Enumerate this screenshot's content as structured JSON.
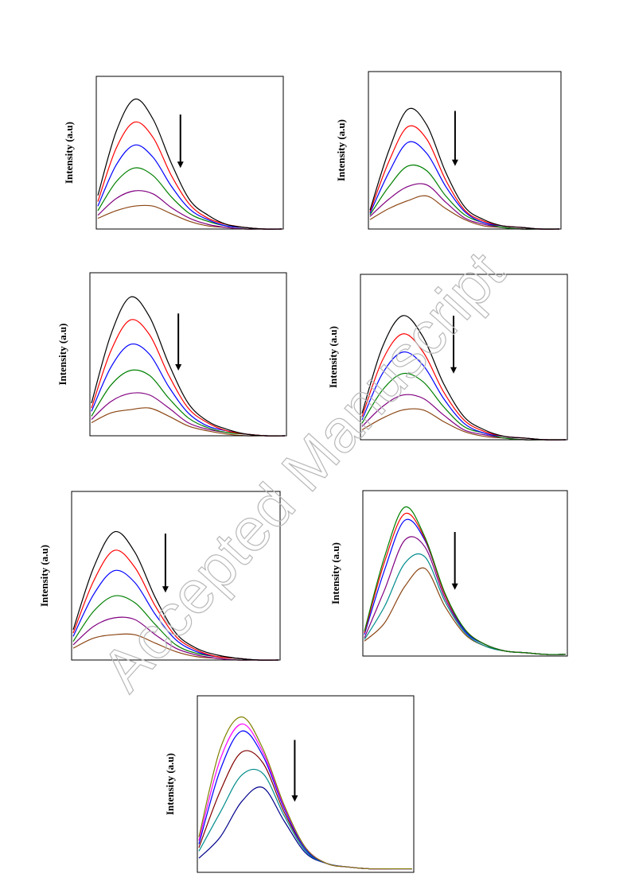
{
  "watermark": "Accepted Manuscript",
  "chart_data": [
    {
      "type": "line",
      "y_label": "Intensity (a.u)",
      "categories": [
        null,
        null,
        null,
        null,
        null,
        null,
        null,
        null,
        null,
        null,
        null
      ],
      "ylim": [
        0,
        100
      ],
      "series": [
        {
          "color": "#000000",
          "values": [
            22,
            64,
            85,
            72,
            43,
            19,
            9,
            3,
            1,
            0,
            0
          ]
        },
        {
          "color": "#ff0000",
          "values": [
            18,
            53,
            70,
            60,
            35,
            16,
            7,
            3,
            1,
            0,
            0
          ]
        },
        {
          "color": "#0000ff",
          "values": [
            15,
            42,
            55,
            47,
            28,
            13,
            6,
            2,
            1,
            0,
            0
          ]
        },
        {
          "color": "#008000",
          "values": [
            12,
            31,
            40,
            35,
            21,
            10,
            5,
            2,
            1,
            0,
            0
          ]
        },
        {
          "color": "#800080",
          "values": [
            9,
            20,
            25,
            23,
            14,
            7,
            3,
            1,
            0,
            0,
            0
          ]
        },
        {
          "color": "#8b4513",
          "values": [
            7,
            12,
            15,
            15,
            10,
            5,
            2,
            1,
            0,
            0,
            0
          ]
        }
      ]
    },
    {
      "type": "line",
      "y_label": "Intensity (a.u)",
      "categories": [
        null,
        null,
        null,
        null,
        null,
        null,
        null,
        null,
        null,
        null,
        null
      ],
      "ylim": [
        0,
        100
      ],
      "series": [
        {
          "color": "#000000",
          "values": [
            12,
            50,
            76,
            66,
            36,
            14,
            6,
            2,
            1,
            0,
            0
          ]
        },
        {
          "color": "#ff0000",
          "values": [
            11,
            43,
            65,
            57,
            31,
            12,
            5,
            2,
            1,
            0,
            0
          ]
        },
        {
          "color": "#0000ff",
          "values": [
            10,
            36,
            55,
            48,
            27,
            11,
            4,
            2,
            1,
            0,
            0
          ]
        },
        {
          "color": "#008000",
          "values": [
            9,
            27,
            40,
            37,
            21,
            9,
            4,
            1,
            0,
            0,
            0
          ]
        },
        {
          "color": "#800080",
          "values": [
            8,
            19,
            27,
            28,
            17,
            7,
            3,
            1,
            0,
            0,
            0
          ]
        },
        {
          "color": "#8b4513",
          "values": [
            6,
            13,
            18,
            21,
            13,
            6,
            2,
            1,
            0,
            0,
            0
          ]
        }
      ]
    },
    {
      "type": "line",
      "y_label": "Intensity (a.u)",
      "categories": [
        null,
        null,
        null,
        null,
        null,
        null,
        null,
        null,
        null,
        null,
        null
      ],
      "ylim": [
        0,
        100
      ],
      "series": [
        {
          "color": "#000000",
          "values": [
            20,
            62,
            85,
            73,
            44,
            20,
            9,
            4,
            1,
            0,
            0
          ]
        },
        {
          "color": "#ff0000",
          "values": [
            17,
            52,
            71,
            62,
            37,
            17,
            8,
            3,
            1,
            0,
            0
          ]
        },
        {
          "color": "#0000ff",
          "values": [
            15,
            42,
            56,
            50,
            30,
            14,
            6,
            3,
            1,
            0,
            0
          ]
        },
        {
          "color": "#008000",
          "values": [
            12,
            31,
            40,
            37,
            23,
            11,
            5,
            2,
            1,
            0,
            0
          ]
        },
        {
          "color": "#800080",
          "values": [
            10,
            21,
            26,
            25,
            17,
            8,
            4,
            2,
            1,
            0,
            0
          ]
        },
        {
          "color": "#8b4513",
          "values": [
            8,
            14,
            16,
            17,
            12,
            6,
            3,
            1,
            0,
            0,
            0
          ]
        }
      ]
    },
    {
      "type": "line",
      "y_label": "Intensity (a.u)",
      "categories": [
        null,
        null,
        null,
        null,
        null,
        null,
        null,
        null,
        null,
        null,
        null
      ],
      "ylim": [
        0,
        100
      ],
      "series": [
        {
          "color": "#000000",
          "values": [
            16,
            56,
            75,
            62,
            34,
            14,
            6,
            2,
            1,
            0,
            0
          ]
        },
        {
          "color": "#ff0000",
          "values": [
            14,
            48,
            64,
            53,
            29,
            12,
            5,
            2,
            1,
            0,
            0
          ]
        },
        {
          "color": "#0000ff",
          "values": [
            12,
            40,
            53,
            45,
            25,
            10,
            4,
            2,
            1,
            0,
            0
          ]
        },
        {
          "color": "#008000",
          "values": [
            10,
            30,
            40,
            35,
            20,
            8,
            4,
            1,
            0,
            0,
            0
          ]
        },
        {
          "color": "#800080",
          "values": [
            8,
            20,
            27,
            25,
            15,
            6,
            3,
            1,
            0,
            0,
            0
          ]
        },
        {
          "color": "#8b4513",
          "values": [
            6,
            13,
            18,
            18,
            11,
            5,
            2,
            1,
            0,
            0,
            0
          ]
        }
      ]
    },
    {
      "type": "line",
      "y_label": "Intensity (a.u)",
      "categories": [
        null,
        null,
        null,
        null,
        null,
        null,
        null,
        null,
        null,
        null,
        null
      ],
      "ylim": [
        0,
        100
      ],
      "series": [
        {
          "color": "#000000",
          "values": [
            18,
            55,
            76,
            64,
            37,
            16,
            7,
            3,
            1,
            0,
            0
          ]
        },
        {
          "color": "#ff0000",
          "values": [
            16,
            47,
            65,
            55,
            32,
            14,
            6,
            2,
            1,
            0,
            0
          ]
        },
        {
          "color": "#0000ff",
          "values": [
            14,
            39,
            53,
            46,
            27,
            12,
            5,
            2,
            1,
            0,
            0
          ]
        },
        {
          "color": "#008000",
          "values": [
            11,
            29,
            38,
            34,
            21,
            9,
            4,
            2,
            1,
            0,
            0
          ]
        },
        {
          "color": "#800080",
          "values": [
            9,
            20,
            25,
            24,
            15,
            7,
            3,
            1,
            0,
            0,
            0
          ]
        },
        {
          "color": "#8b4513",
          "values": [
            7,
            13,
            15,
            15,
            10,
            5,
            2,
            1,
            0,
            0,
            0
          ]
        }
      ]
    },
    {
      "type": "line",
      "y_label": "Intensity (a.u)",
      "categories": [
        null,
        null,
        null,
        null,
        null,
        null,
        null,
        null,
        null,
        null,
        null
      ],
      "ylim": [
        0,
        100
      ],
      "series": [
        {
          "color": "#008000",
          "values": [
            15,
            60,
            90,
            72,
            38,
            16,
            7,
            3,
            2,
            1,
            1
          ]
        },
        {
          "color": "#ff0000",
          "values": [
            14,
            57,
            86,
            71,
            37,
            16,
            7,
            3,
            2,
            1,
            1
          ]
        },
        {
          "color": "#0000ff",
          "values": [
            13,
            52,
            82,
            70,
            37,
            15,
            7,
            3,
            2,
            1,
            1
          ]
        },
        {
          "color": "#800080",
          "values": [
            11,
            40,
            70,
            66,
            35,
            15,
            7,
            3,
            2,
            1,
            1
          ]
        },
        {
          "color": "#008b8b",
          "values": [
            10,
            30,
            56,
            60,
            33,
            14,
            6,
            3,
            2,
            1,
            1
          ]
        },
        {
          "color": "#8b4513",
          "values": [
            9,
            20,
            42,
            53,
            30,
            13,
            6,
            3,
            2,
            1,
            1
          ]
        }
      ]
    },
    {
      "type": "line",
      "y_label": "Intensity (a.u)",
      "categories": [
        null,
        null,
        null,
        null,
        null,
        null,
        null,
        null,
        null,
        null,
        null
      ],
      "ylim": [
        0,
        100
      ],
      "series": [
        {
          "color": "#808000",
          "values": [
            20,
            70,
            88,
            70,
            38,
            14,
            5,
            3,
            2,
            2,
            2
          ]
        },
        {
          "color": "#ff00ff",
          "values": [
            18,
            64,
            84,
            68,
            37,
            14,
            5,
            3,
            2,
            2,
            2
          ]
        },
        {
          "color": "#0000ff",
          "values": [
            16,
            58,
            80,
            66,
            36,
            13,
            5,
            3,
            2,
            2,
            2
          ]
        },
        {
          "color": "#800000",
          "values": [
            14,
            46,
            68,
            62,
            34,
            13,
            5,
            3,
            2,
            2,
            2
          ]
        },
        {
          "color": "#008b8b",
          "values": [
            12,
            34,
            55,
            56,
            32,
            12,
            5,
            3,
            2,
            2,
            2
          ]
        },
        {
          "color": "#00008b",
          "values": [
            8,
            20,
            40,
            48,
            29,
            11,
            5,
            3,
            2,
            2,
            2
          ]
        }
      ]
    }
  ]
}
